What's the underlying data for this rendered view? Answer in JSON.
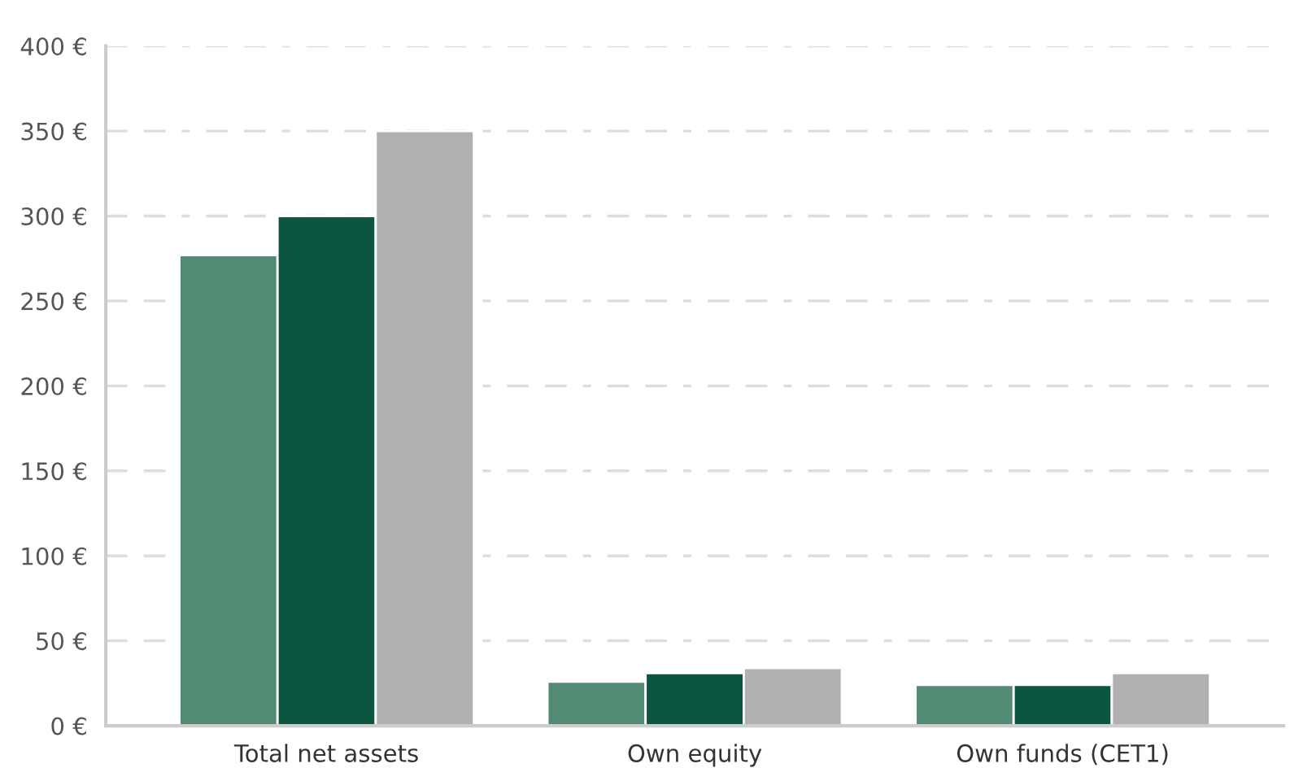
{
  "chart_data": {
    "type": "bar",
    "categories": [
      "Total net assets",
      "Own equity",
      "Own funds (CET1)"
    ],
    "series": [
      {
        "color": "#528a74",
        "values": [
          277,
          26,
          24
        ]
      },
      {
        "color": "#0b5541",
        "values": [
          300,
          31,
          24
        ]
      },
      {
        "color": "#b0b0b0",
        "values": [
          350,
          34,
          31
        ]
      }
    ],
    "ylim": [
      0,
      400
    ],
    "yticks": [
      {
        "value": 0,
        "label": "0 €"
      },
      {
        "value": 50,
        "label": "50 €"
      },
      {
        "value": 100,
        "label": "100 €"
      },
      {
        "value": 150,
        "label": "150 €"
      },
      {
        "value": 200,
        "label": "200 €"
      },
      {
        "value": 250,
        "label": "250 €"
      },
      {
        "value": 300,
        "label": "300 €"
      },
      {
        "value": 350,
        "label": "350 €"
      },
      {
        "value": 400,
        "label": "400 €"
      }
    ],
    "grid": "y"
  }
}
